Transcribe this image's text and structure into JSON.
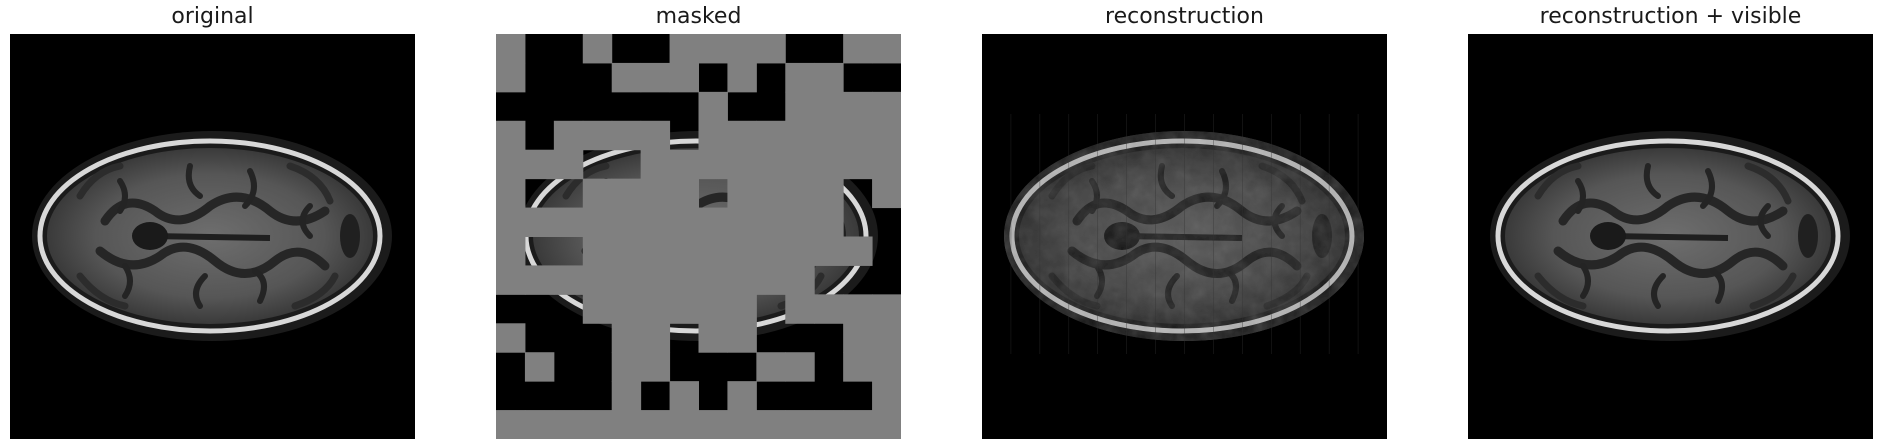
{
  "figure": {
    "panels": [
      {
        "title": "original"
      },
      {
        "title": "masked"
      },
      {
        "title": "reconstruction"
      },
      {
        "title": "reconstruction + visible"
      }
    ],
    "colors": {
      "background": "#000000",
      "mask_patch": "#808080",
      "brain_tissue": "#5a5a5a",
      "skull_ring": "#d0d0d0"
    },
    "mask_grid": {
      "size": 14,
      "mask_ratio_note_hidden": null
    }
  }
}
